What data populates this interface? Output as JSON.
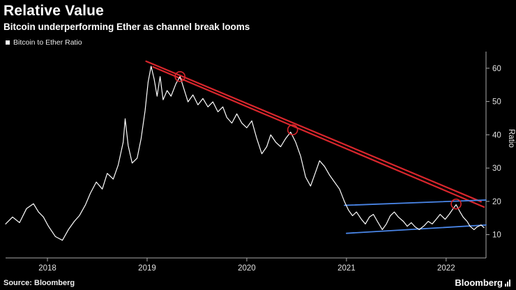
{
  "header": {
    "title": "Relative Value",
    "subtitle": "Bitcoin underperforming Ether as channel break looms"
  },
  "legend": {
    "label": "Bitcoin to Ether Ratio",
    "marker_color": "#ffffff"
  },
  "footer": {
    "source": "Source: Bloomberg",
    "brand": "Bloomberg"
  },
  "colors": {
    "background": "#000000",
    "price_line": "#ffffff",
    "trendline_red": "#d8262c",
    "channel_blue": "#4a86e8",
    "axis": "#aaaaaa",
    "tick_text": "#e0e0e0"
  },
  "chart_data": {
    "type": "line",
    "title": "Relative Value",
    "subtitle": "Bitcoin underperforming Ether as channel break looms",
    "ylabel": "Ratio",
    "xlabel": "",
    "grid": false,
    "legend_position": "top-left",
    "x_domain": [
      2017.58,
      2022.4
    ],
    "y_domain": [
      3,
      65
    ],
    "x_ticks": [
      2018,
      2019,
      2020,
      2021,
      2022
    ],
    "y_ticks": [
      10,
      20,
      30,
      40,
      50,
      60
    ],
    "series": [
      {
        "name": "Bitcoin to Ether Ratio",
        "color": "#ffffff",
        "points": [
          [
            2017.58,
            13.2
          ],
          [
            2017.65,
            15.3
          ],
          [
            2017.72,
            13.6
          ],
          [
            2017.79,
            17.8
          ],
          [
            2017.86,
            19.3
          ],
          [
            2017.91,
            16.8
          ],
          [
            2017.96,
            15.3
          ],
          [
            2018.01,
            12.5
          ],
          [
            2018.08,
            9.4
          ],
          [
            2018.15,
            8.3
          ],
          [
            2018.21,
            11.5
          ],
          [
            2018.27,
            14.0
          ],
          [
            2018.32,
            15.7
          ],
          [
            2018.38,
            18.9
          ],
          [
            2018.43,
            22.4
          ],
          [
            2018.49,
            25.8
          ],
          [
            2018.55,
            23.7
          ],
          [
            2018.6,
            28.4
          ],
          [
            2018.66,
            26.7
          ],
          [
            2018.71,
            30.9
          ],
          [
            2018.76,
            37.8
          ],
          [
            2018.78,
            44.8
          ],
          [
            2018.81,
            36.8
          ],
          [
            2018.85,
            31.5
          ],
          [
            2018.9,
            33.0
          ],
          [
            2018.94,
            38.9
          ],
          [
            2018.98,
            47.3
          ],
          [
            2019.01,
            55.8
          ],
          [
            2019.04,
            60.6
          ],
          [
            2019.07,
            56.8
          ],
          [
            2019.1,
            51.6
          ],
          [
            2019.13,
            57.5
          ],
          [
            2019.16,
            50.5
          ],
          [
            2019.2,
            53.3
          ],
          [
            2019.24,
            51.6
          ],
          [
            2019.29,
            55.4
          ],
          [
            2019.33,
            57.5
          ],
          [
            2019.37,
            53.7
          ],
          [
            2019.41,
            49.9
          ],
          [
            2019.46,
            52.0
          ],
          [
            2019.51,
            49.0
          ],
          [
            2019.56,
            50.9
          ],
          [
            2019.61,
            48.4
          ],
          [
            2019.66,
            49.9
          ],
          [
            2019.71,
            46.9
          ],
          [
            2019.76,
            48.4
          ],
          [
            2019.8,
            45.2
          ],
          [
            2019.85,
            43.5
          ],
          [
            2019.9,
            46.3
          ],
          [
            2019.95,
            43.5
          ],
          [
            2020.0,
            42.1
          ],
          [
            2020.05,
            44.2
          ],
          [
            2020.1,
            38.9
          ],
          [
            2020.15,
            34.3
          ],
          [
            2020.2,
            36.4
          ],
          [
            2020.24,
            40.0
          ],
          [
            2020.29,
            37.8
          ],
          [
            2020.34,
            36.4
          ],
          [
            2020.39,
            38.9
          ],
          [
            2020.44,
            40.8
          ],
          [
            2020.49,
            37.8
          ],
          [
            2020.54,
            33.6
          ],
          [
            2020.59,
            27.3
          ],
          [
            2020.64,
            24.6
          ],
          [
            2020.69,
            28.8
          ],
          [
            2020.73,
            32.2
          ],
          [
            2020.78,
            30.5
          ],
          [
            2020.83,
            27.9
          ],
          [
            2020.88,
            25.8
          ],
          [
            2020.93,
            23.7
          ],
          [
            2020.98,
            19.9
          ],
          [
            2021.02,
            17.4
          ],
          [
            2021.06,
            15.7
          ],
          [
            2021.1,
            16.8
          ],
          [
            2021.15,
            14.6
          ],
          [
            2021.19,
            13.2
          ],
          [
            2021.23,
            15.3
          ],
          [
            2021.27,
            16.1
          ],
          [
            2021.31,
            14.0
          ],
          [
            2021.36,
            11.5
          ],
          [
            2021.4,
            13.2
          ],
          [
            2021.44,
            15.7
          ],
          [
            2021.48,
            16.8
          ],
          [
            2021.52,
            15.3
          ],
          [
            2021.57,
            14.0
          ],
          [
            2021.61,
            12.5
          ],
          [
            2021.65,
            13.6
          ],
          [
            2021.69,
            12.3
          ],
          [
            2021.73,
            11.5
          ],
          [
            2021.78,
            12.7
          ],
          [
            2021.82,
            14.0
          ],
          [
            2021.86,
            13.2
          ],
          [
            2021.9,
            14.6
          ],
          [
            2021.94,
            16.1
          ],
          [
            2021.99,
            14.6
          ],
          [
            2022.03,
            16.1
          ],
          [
            2022.07,
            17.8
          ],
          [
            2022.1,
            19.0
          ],
          [
            2022.14,
            16.8
          ],
          [
            2022.17,
            15.3
          ],
          [
            2022.21,
            14.0
          ],
          [
            2022.24,
            12.5
          ],
          [
            2022.28,
            11.5
          ],
          [
            2022.31,
            12.3
          ],
          [
            2022.35,
            12.9
          ],
          [
            2022.38,
            12.1
          ]
        ]
      }
    ],
    "annotations": {
      "trendlines_red": [
        {
          "from": [
            2018.99,
            62.1
          ],
          "to": [
            2022.35,
            19.9
          ]
        },
        {
          "from": [
            2019.06,
            60.4
          ],
          "to": [
            2022.38,
            18.3
          ]
        }
      ],
      "channel_lines_blue": [
        {
          "from": [
            2020.98,
            18.8
          ],
          "to": [
            2022.4,
            20.4
          ]
        },
        {
          "from": [
            2021.0,
            10.4
          ],
          "to": [
            2022.4,
            12.9
          ]
        }
      ],
      "touch_circles": [
        {
          "at": [
            2019.33,
            57.5
          ]
        },
        {
          "at": [
            2020.46,
            41.5
          ]
        },
        {
          "at": [
            2022.1,
            19.2
          ]
        }
      ]
    }
  }
}
